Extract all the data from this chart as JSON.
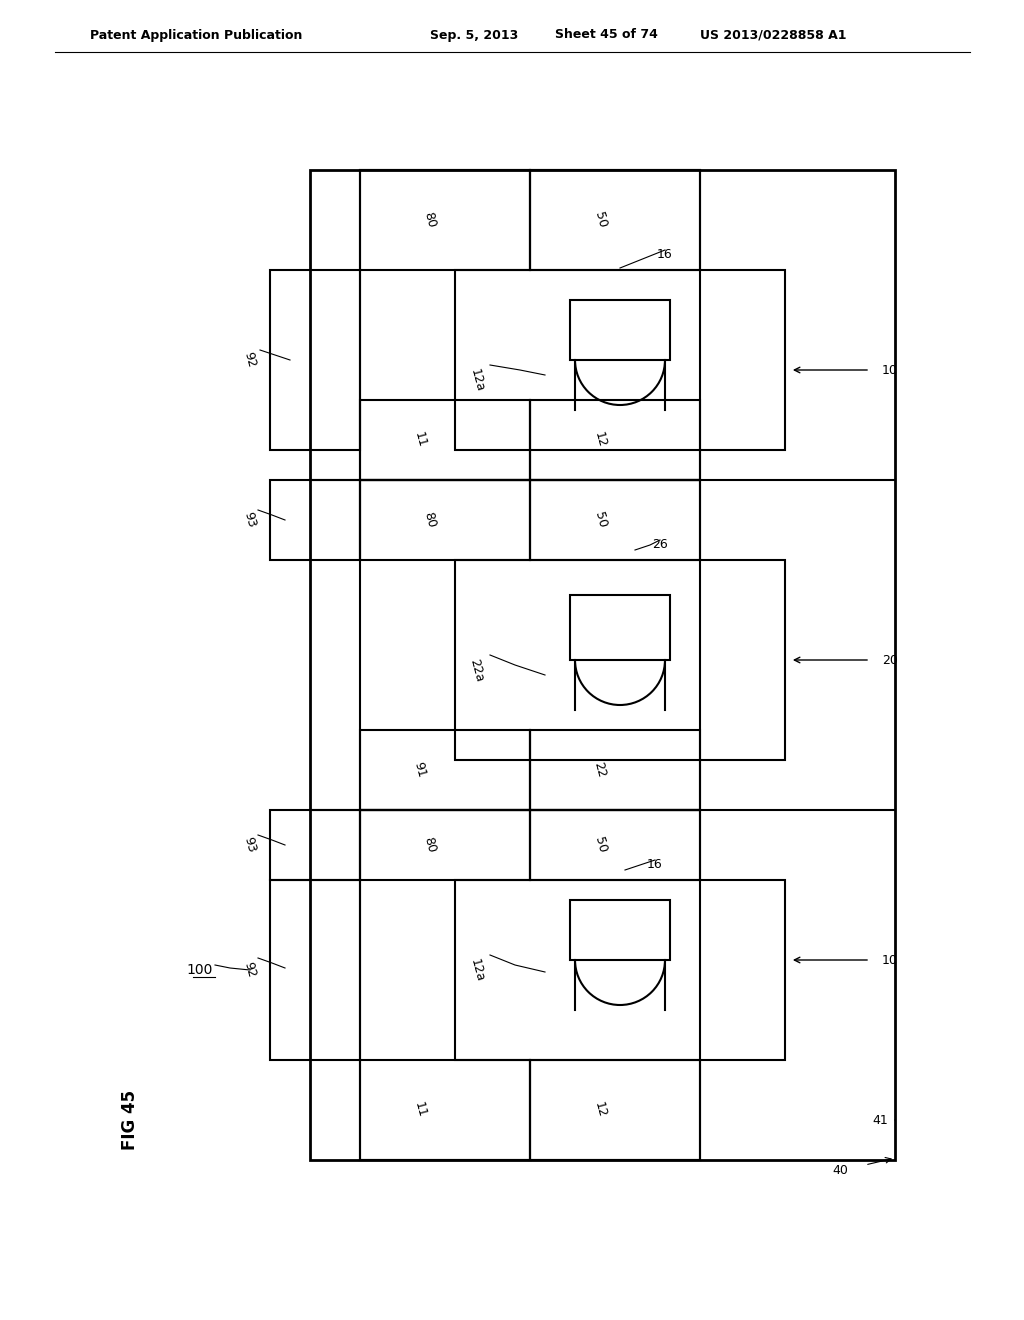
{
  "title_left": "Patent Application Publication",
  "title_mid": "Sep. 5, 2013",
  "title_sheet": "Sheet 45 of 74",
  "title_right": "US 2013/0228858 A1",
  "fig_label": "FIG 45",
  "bg_color": "#ffffff",
  "line_color": "#000000",
  "label_100": "100",
  "label_10": "10",
  "label_20": "20",
  "label_40": "40",
  "label_41": "41",
  "label_11": "11",
  "label_12": "12",
  "label_12a": "12a",
  "label_16_top": "16",
  "label_16_bot": "16",
  "label_22": "22",
  "label_22a": "22a",
  "label_26": "26",
  "label_80": "80",
  "label_50": "50",
  "label_91": "91",
  "label_92_top": "92",
  "label_92_bot": "92",
  "label_93_top": "93",
  "label_93_bot": "93"
}
